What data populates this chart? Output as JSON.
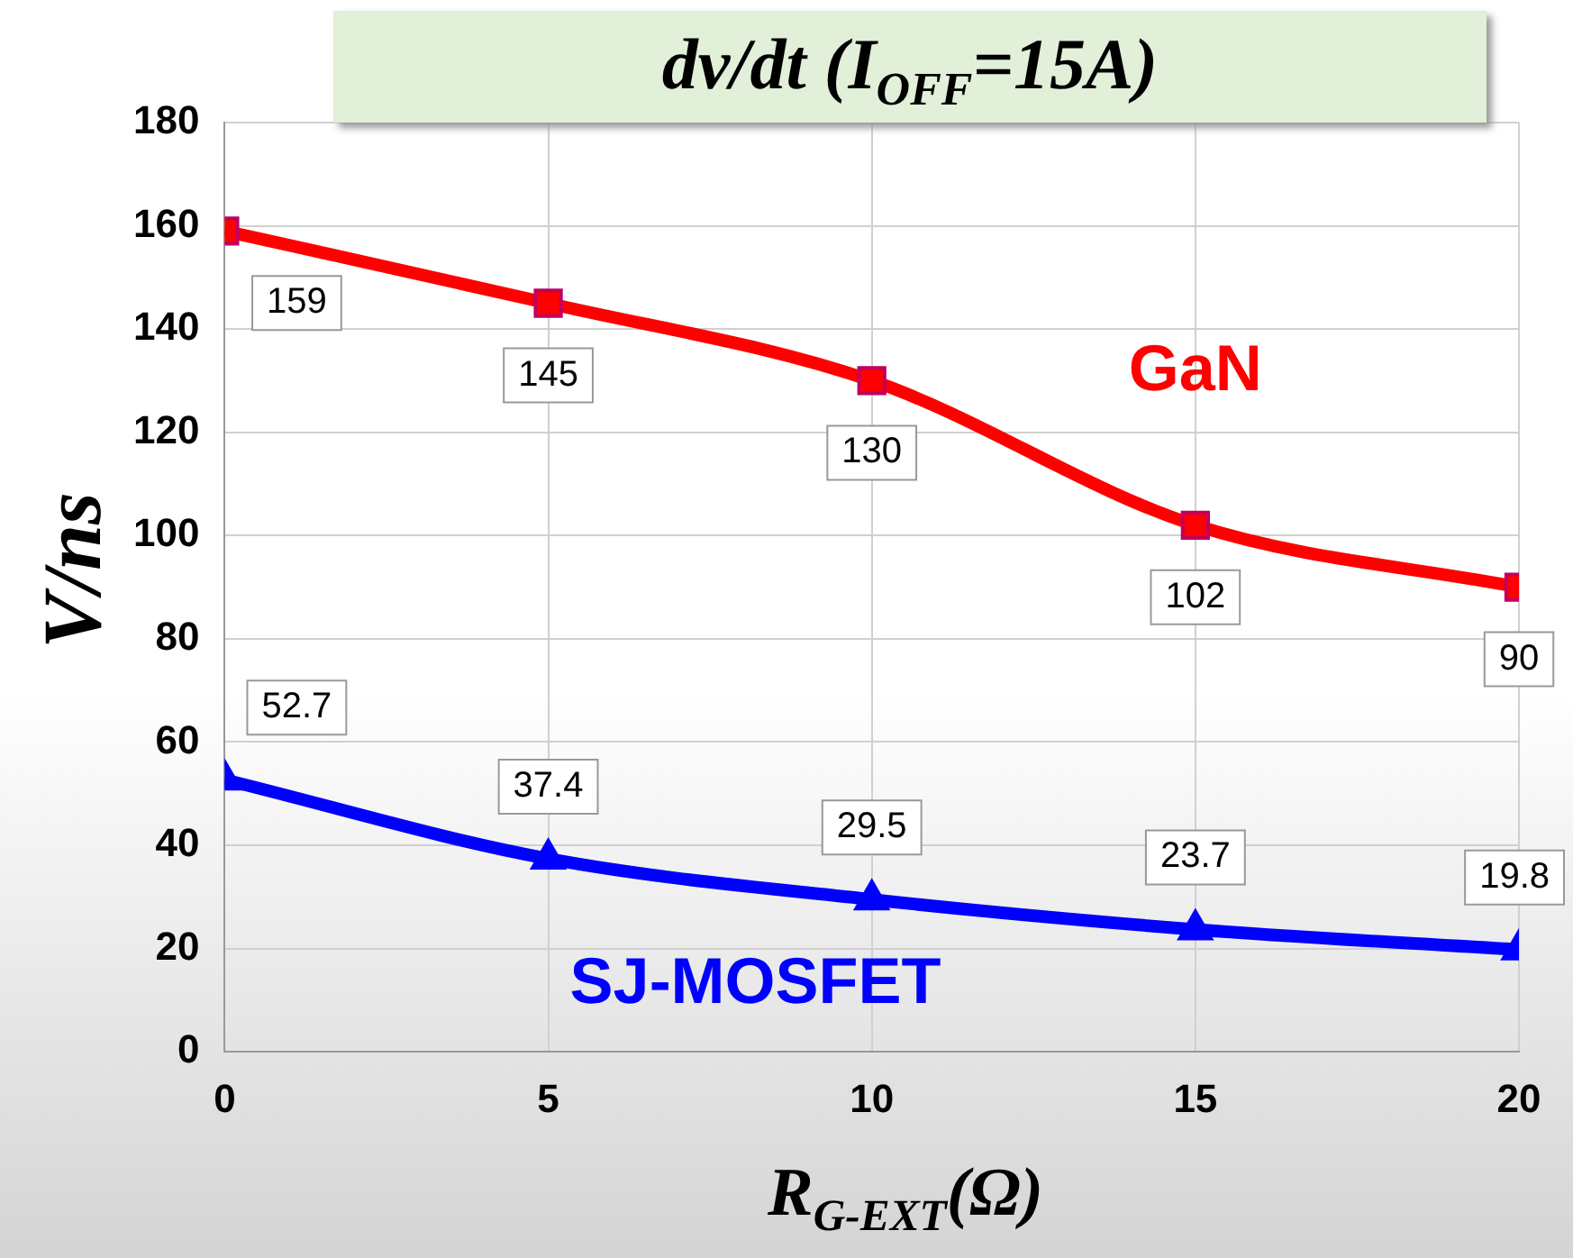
{
  "chart_data": {
    "type": "line",
    "title": "dv/dt (I$_{OFF}$=15A)",
    "xlabel": "R$_{G-EXT}$(Ω)",
    "ylabel": "V/ns",
    "x": [
      0,
      5,
      10,
      15,
      20
    ],
    "xlim": [
      0,
      20
    ],
    "xticks": [
      0,
      5,
      10,
      15,
      20
    ],
    "ylim": [
      0,
      180
    ],
    "yticks": [
      0,
      20,
      40,
      60,
      80,
      100,
      120,
      140,
      160,
      180
    ],
    "grid": true,
    "legend": false,
    "data_labels": true,
    "line_style": "solid",
    "series": [
      {
        "name": "GaN",
        "color": "#ff0000",
        "marker": "square",
        "values": [
          159,
          145,
          130,
          102,
          90
        ]
      },
      {
        "name": "SJ-MOSFET",
        "color": "#0000ff",
        "marker": "triangle",
        "values": [
          52.7,
          37.4,
          29.5,
          23.7,
          19.8
        ]
      }
    ]
  }
}
